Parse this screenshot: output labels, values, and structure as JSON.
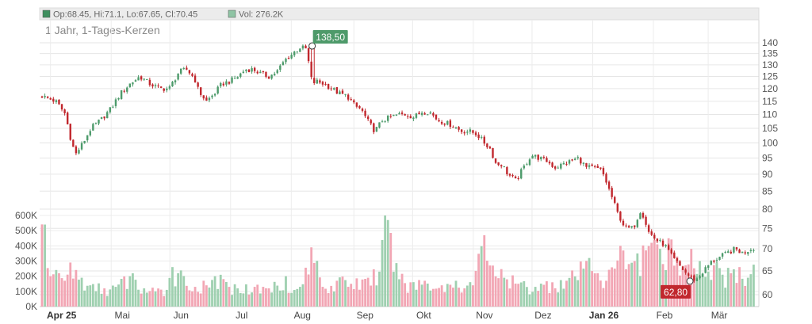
{
  "legend": {
    "ohlc_text": "Op:68.45, Hi:71.1, Lo:67.65, Cl:70.45",
    "vol_text": "Vol: 276.2K",
    "ohlc_color": "#3f8f5f",
    "vol_color": "#8fc4a4"
  },
  "subtitle": "1 Jahr, 1-Tages-Kerzen",
  "high_label": "138,50",
  "low_label": "62,80",
  "colors": {
    "up": "#4d9b6b",
    "down": "#c1272d",
    "vol_up": "#9fd0b0",
    "vol_down": "#f2a6b4",
    "high_label_bg": "#4e9a6a",
    "low_label_bg": "#c1272d"
  },
  "chart_data": {
    "type": "candlestick",
    "price_axis": {
      "scale": "log",
      "ticks": [
        60,
        65,
        70,
        75,
        80,
        85,
        90,
        95,
        100,
        105,
        110,
        115,
        120,
        125,
        130,
        135,
        140
      ]
    },
    "volume_axis": {
      "ticks": [
        0,
        100000,
        200000,
        300000,
        400000,
        500000,
        600000
      ],
      "tick_labels": [
        "0K",
        "100K",
        "200K",
        "300K",
        "400K",
        "500K",
        "600K"
      ]
    },
    "x_axis": {
      "labels": [
        "Apr 25",
        "Mai",
        "Jun",
        "Jul",
        "Aug",
        "Sep",
        "Okt",
        "Nov",
        "Dez",
        "Jan 26",
        "Feb",
        "Mär"
      ],
      "bold": [
        "Apr 25",
        "Jan 26"
      ],
      "label_days": [
        10,
        41,
        71,
        102,
        133,
        165,
        195,
        226,
        256,
        287,
        318,
        346
      ]
    },
    "period_start": "2025-03-21",
    "period_days": 365,
    "price_series": {
      "days": [
        0,
        7,
        12,
        14,
        17,
        21,
        25,
        30,
        35,
        40,
        45,
        50,
        55,
        60,
        65,
        70,
        74,
        78,
        80,
        84,
        88,
        92,
        96,
        100,
        104,
        108,
        112,
        116,
        120,
        124,
        128,
        132,
        135,
        138,
        140,
        144,
        148,
        152,
        156,
        160,
        163,
        166,
        170,
        174,
        178,
        182,
        186,
        190,
        194,
        198,
        202,
        206,
        210,
        214,
        218,
        222,
        226,
        229,
        232,
        235,
        238,
        242,
        246,
        250,
        254,
        258,
        262,
        266,
        270,
        274,
        278,
        282,
        286,
        290,
        294,
        298,
        302,
        306,
        310,
        314,
        318,
        322,
        326,
        330,
        334,
        338,
        342,
        346,
        350,
        354,
        358,
        362,
        365
      ],
      "closes": [
        117,
        115,
        110,
        103,
        96,
        100,
        105,
        108,
        112,
        118,
        122,
        125,
        122,
        120,
        120,
        127,
        128,
        124,
        119,
        115,
        118,
        122,
        123,
        125,
        128,
        128,
        126,
        125,
        127,
        132,
        135,
        138,
        137,
        122,
        123,
        122,
        120,
        118,
        117,
        113,
        112,
        108,
        104,
        108,
        109,
        110,
        110,
        109,
        111,
        111,
        108,
        107,
        106,
        104,
        104,
        103,
        100,
        98,
        93,
        93,
        90,
        88,
        92,
        96,
        95,
        94,
        92,
        93,
        94,
        95,
        92,
        92,
        91,
        85,
        79,
        75,
        75,
        80,
        74,
        72,
        71,
        68,
        66,
        64,
        63,
        65,
        67,
        68,
        69,
        70,
        69,
        70,
        70.45
      ],
      "high": {
        "day": 138,
        "value": 138.5,
        "label": "138,50"
      },
      "low": {
        "day": 331,
        "value": 62.8,
        "label": "62,80"
      }
    },
    "volume_series": {
      "days": [
        1,
        5,
        9,
        12,
        15,
        20,
        25,
        32,
        38,
        45,
        52,
        58,
        64,
        66,
        70,
        78,
        84,
        88,
        96,
        100,
        108,
        116,
        124,
        128,
        132,
        138,
        144,
        150,
        158,
        166,
        172,
        176,
        182,
        188,
        196,
        204,
        212,
        220,
        226,
        230,
        236,
        244,
        252,
        260,
        268,
        276,
        280,
        284,
        288,
        292,
        296,
        300,
        304,
        308,
        312,
        316,
        320,
        324,
        328,
        332,
        336,
        340,
        344,
        348,
        352,
        356,
        360,
        364
      ],
      "values": [
        540000,
        200000,
        220000,
        170000,
        290000,
        190000,
        140000,
        120000,
        130000,
        200000,
        120000,
        100000,
        110000,
        260000,
        220000,
        130000,
        140000,
        200000,
        130000,
        120000,
        130000,
        120000,
        200000,
        90000,
        130000,
        390000,
        130000,
        170000,
        150000,
        190000,
        230000,
        570000,
        180000,
        160000,
        170000,
        140000,
        170000,
        140000,
        470000,
        270000,
        190000,
        150000,
        130000,
        160000,
        170000,
        250000,
        320000,
        220000,
        170000,
        250000,
        400000,
        280000,
        350000,
        370000,
        420000,
        380000,
        450000,
        330000,
        250000,
        380000,
        300000,
        230000,
        290000,
        210000,
        220000,
        260000,
        190000,
        276200
      ]
    }
  }
}
